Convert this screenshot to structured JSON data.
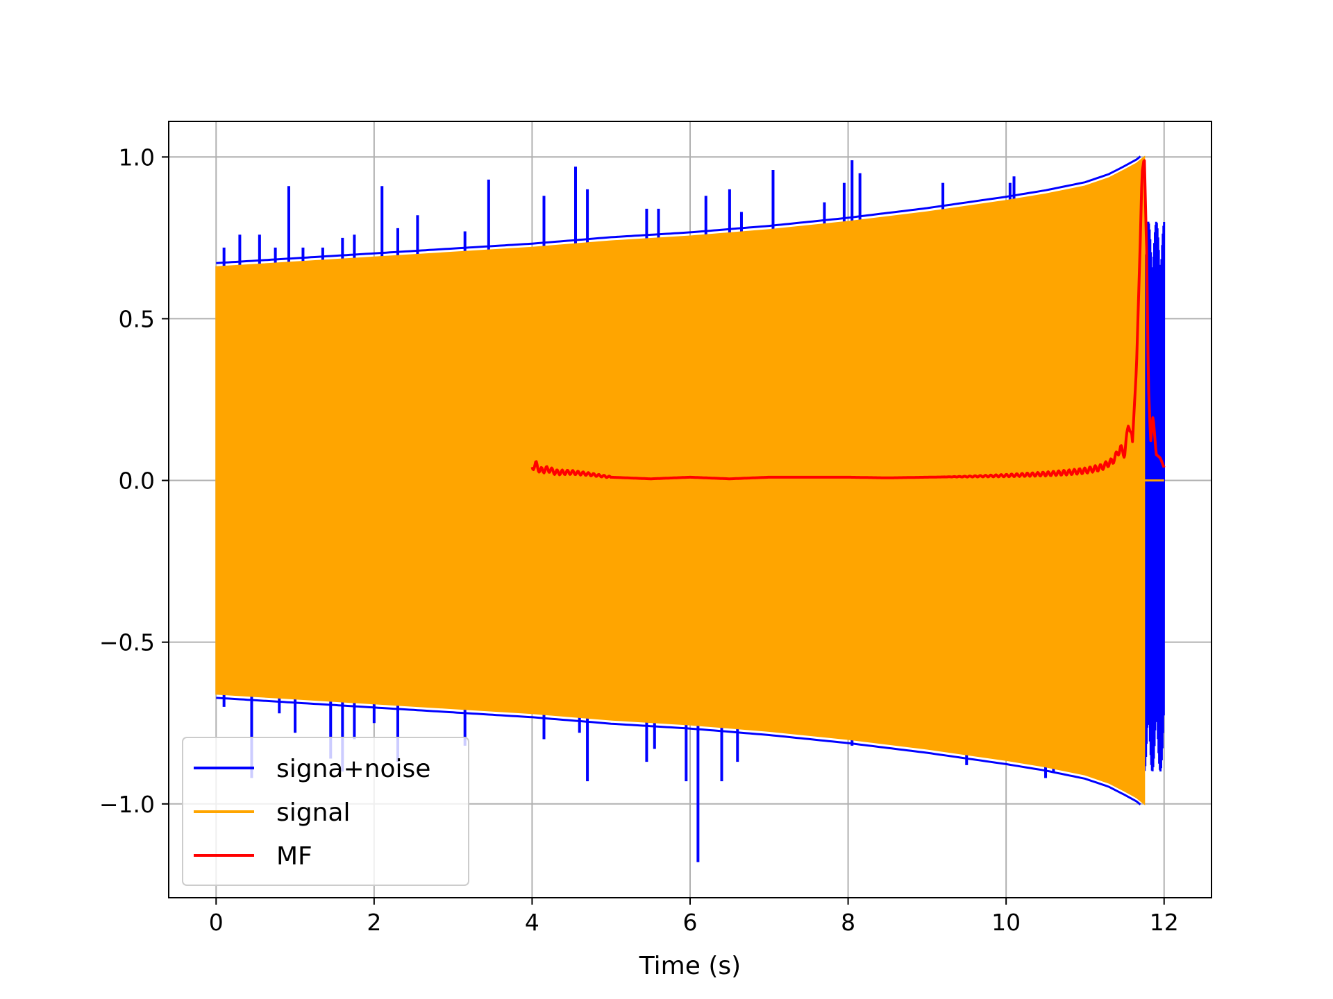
{
  "chart_data": {
    "type": "line",
    "title": "",
    "xlabel": "Time (s)",
    "ylabel": "",
    "xlim": [
      -0.6,
      12.6
    ],
    "ylim": [
      -1.29,
      1.11
    ],
    "xticks": [
      0,
      2,
      4,
      6,
      8,
      10,
      12
    ],
    "xtick_labels": [
      "0",
      "2",
      "4",
      "6",
      "8",
      "10",
      "12"
    ],
    "yticks": [
      1.0,
      0.5,
      0.0,
      -0.5,
      -1.0
    ],
    "ytick_labels": [
      "1.0",
      "0.5",
      "0.0",
      "−0.5",
      "−1.0"
    ],
    "grid": true,
    "legend_position": "lower-left",
    "legend": [
      {
        "label": "signa+noise",
        "color": "#0000ff"
      },
      {
        "label": "signal",
        "color": "#ffa500"
      },
      {
        "label": "MF",
        "color": "#ff0000"
      }
    ],
    "series": [
      {
        "name": "signa+noise",
        "color": "#0000ff",
        "x_range": [
          0,
          12
        ],
        "spikes_upper": [
          [
            0.1,
            0.72
          ],
          [
            0.3,
            0.76
          ],
          [
            0.55,
            0.76
          ],
          [
            0.75,
            0.72
          ],
          [
            0.92,
            0.91
          ],
          [
            1.1,
            0.72
          ],
          [
            1.35,
            0.72
          ],
          [
            1.6,
            0.75
          ],
          [
            1.75,
            0.76
          ],
          [
            2.1,
            0.91
          ],
          [
            2.3,
            0.78
          ],
          [
            2.55,
            0.82
          ],
          [
            3.15,
            0.77
          ],
          [
            3.45,
            0.93
          ],
          [
            4.15,
            0.88
          ],
          [
            4.55,
            0.97
          ],
          [
            4.7,
            0.9
          ],
          [
            5.45,
            0.84
          ],
          [
            5.6,
            0.84
          ],
          [
            6.2,
            0.88
          ],
          [
            6.5,
            0.9
          ],
          [
            6.65,
            0.83
          ],
          [
            7.05,
            0.96
          ],
          [
            7.7,
            0.86
          ],
          [
            7.95,
            0.92
          ],
          [
            8.05,
            0.99
          ],
          [
            8.15,
            0.95
          ],
          [
            9.2,
            0.92
          ],
          [
            10.05,
            0.92
          ],
          [
            10.1,
            0.94
          ]
        ],
        "spikes_lower": [
          [
            0.1,
            -0.7
          ],
          [
            0.45,
            -0.92
          ],
          [
            0.8,
            -0.72
          ],
          [
            1.0,
            -0.78
          ],
          [
            1.45,
            -0.86
          ],
          [
            1.6,
            -0.9
          ],
          [
            1.75,
            -0.8
          ],
          [
            2.0,
            -0.75
          ],
          [
            2.3,
            -0.87
          ],
          [
            3.15,
            -0.82
          ],
          [
            4.15,
            -0.8
          ],
          [
            4.6,
            -0.78
          ],
          [
            4.7,
            -0.93
          ],
          [
            5.45,
            -0.87
          ],
          [
            5.55,
            -0.83
          ],
          [
            5.95,
            -0.93
          ],
          [
            6.1,
            -1.18
          ],
          [
            6.4,
            -0.93
          ],
          [
            6.6,
            -0.87
          ],
          [
            8.05,
            -0.82
          ],
          [
            9.5,
            -0.88
          ],
          [
            10.5,
            -0.92
          ],
          [
            10.6,
            -0.9
          ]
        ],
        "tail_burst": {
          "x": [
            11.75,
            12.0
          ],
          "ylim": [
            -0.9,
            0.8
          ]
        }
      },
      {
        "name": "signal",
        "color": "#ffa500",
        "envelope_x": [
          0,
          1,
          2,
          3,
          4,
          5,
          6,
          7,
          8,
          9,
          10,
          10.5,
          11,
          11.3,
          11.5,
          11.65,
          11.75
        ],
        "envelope_y": [
          0.66,
          0.675,
          0.69,
          0.705,
          0.72,
          0.74,
          0.755,
          0.775,
          0.8,
          0.83,
          0.865,
          0.885,
          0.91,
          0.935,
          0.96,
          0.98,
          1.0
        ],
        "after_x": [
          11.75,
          12.0
        ],
        "after_y": [
          0.0,
          0.0
        ]
      },
      {
        "name": "MF",
        "color": "#ff0000",
        "x": [
          4.0,
          4.05,
          4.1,
          4.2,
          4.3,
          4.5,
          4.7,
          5.0,
          5.5,
          6.0,
          6.5,
          7.0,
          7.5,
          8.0,
          8.5,
          9.0,
          9.5,
          10.0,
          10.5,
          10.8,
          11.0,
          11.2,
          11.35,
          11.45,
          11.5,
          11.55,
          11.6,
          11.65,
          11.7,
          11.72,
          11.75,
          11.78,
          11.8,
          11.83,
          11.86,
          11.9,
          11.95,
          12.0
        ],
        "y": [
          0.04,
          0.05,
          0.03,
          0.035,
          0.025,
          0.025,
          0.02,
          0.01,
          0.005,
          0.01,
          0.005,
          0.01,
          0.01,
          0.01,
          0.008,
          0.01,
          0.012,
          0.015,
          0.02,
          0.025,
          0.03,
          0.04,
          0.06,
          0.1,
          0.08,
          0.18,
          0.12,
          0.35,
          0.75,
          0.95,
          1.0,
          0.7,
          0.3,
          0.12,
          0.2,
          0.08,
          0.07,
          0.04
        ]
      }
    ]
  }
}
